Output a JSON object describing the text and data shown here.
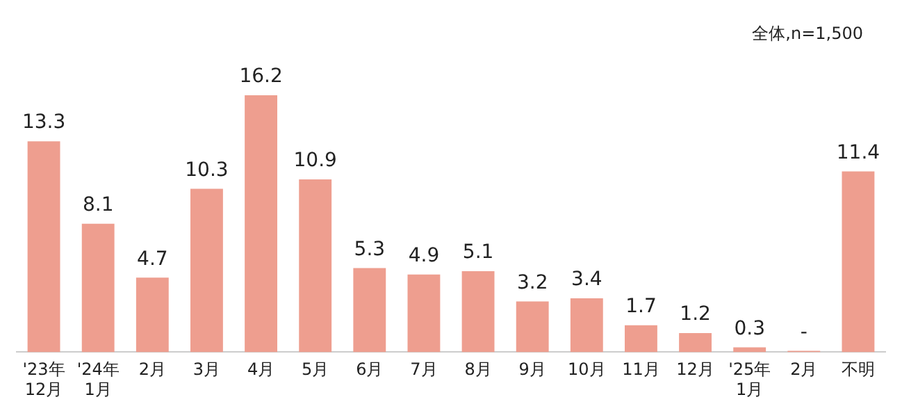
{
  "chart_data": {
    "type": "bar",
    "categories": [
      "'23年\n12月",
      "'24年\n1月",
      "2月",
      "3月",
      "4月",
      "5月",
      "6月",
      "7月",
      "8月",
      "9月",
      "10月",
      "11月",
      "12月",
      "'25年\n1月",
      "2月",
      "不明"
    ],
    "values": [
      13.3,
      8.1,
      4.7,
      10.3,
      16.2,
      10.9,
      5.3,
      4.9,
      5.1,
      3.2,
      3.4,
      1.7,
      1.2,
      0.3,
      0,
      11.4
    ],
    "value_labels": [
      "13.3",
      "8.1",
      "4.7",
      "10.3",
      "16.2",
      "10.9",
      "5.3",
      "4.9",
      "5.1",
      "3.2",
      "3.4",
      "1.7",
      "1.2",
      "0.3",
      "-",
      "11.4"
    ],
    "color": "#ee9e8f",
    "annotations": [
      "全体,n=1,500"
    ],
    "grid": false,
    "legend": false
  }
}
